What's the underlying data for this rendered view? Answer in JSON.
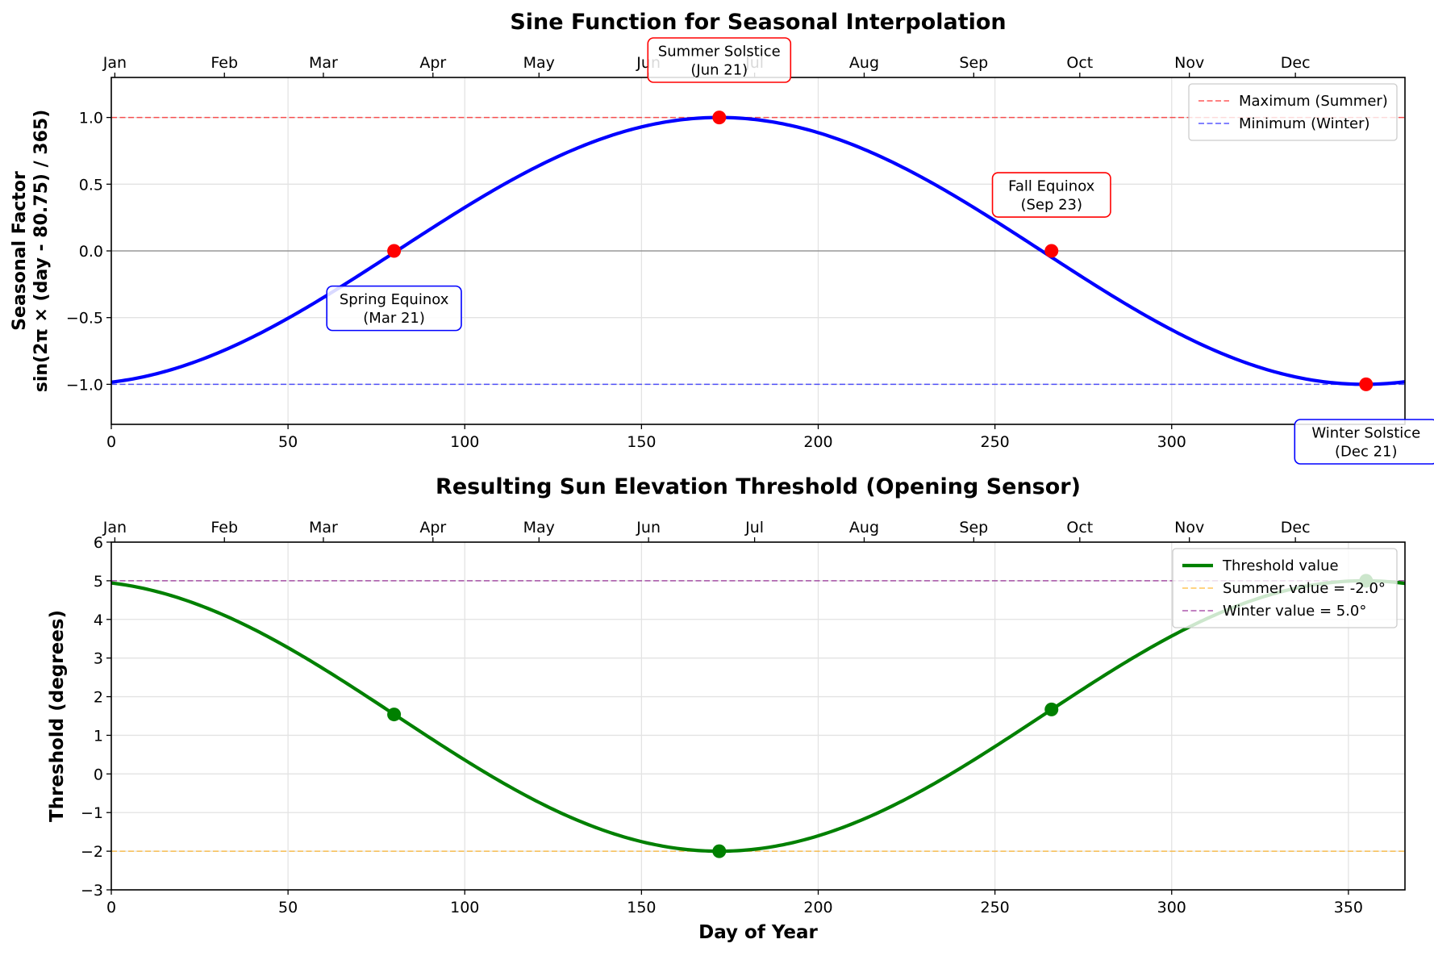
{
  "chart_data": [
    {
      "type": "line",
      "title": "Sine Function for Seasonal Interpolation",
      "xlabel": "",
      "ylabel": [
        "Seasonal Factor",
        "sin(2π × (day - 80.75) / 365)"
      ],
      "xlim": [
        0,
        366
      ],
      "ylim": [
        -1.3,
        1.3
      ],
      "xticks": [
        0,
        50,
        100,
        150,
        200,
        250,
        300
      ],
      "yticks": [
        -1.0,
        -0.5,
        0.0,
        0.5,
        1.0
      ],
      "ytick_labels": [
        "−1.0",
        "−0.5",
        "0.0",
        "0.5",
        "1.0"
      ],
      "grid": true,
      "month_axis": {
        "labels": [
          "Jan",
          "Feb",
          "Mar",
          "Apr",
          "May",
          "Jun",
          "Jul",
          "Aug",
          "Sep",
          "Oct",
          "Nov",
          "Dec"
        ],
        "positions": [
          1,
          32,
          60,
          91,
          121,
          152,
          182,
          213,
          244,
          274,
          305,
          335
        ]
      },
      "curve": {
        "formula": "sin(2*pi*(x-80.75)/365)",
        "x_step": 1,
        "color": "#0000ff"
      },
      "reference_lines": [
        {
          "y": 1.0,
          "name": "Maximum (Summer)",
          "color": "#ff0000"
        },
        {
          "y": -1.0,
          "name": "Minimum (Winter)",
          "color": "#0000ff"
        },
        {
          "y": 0.0,
          "name": "",
          "color": "#808080"
        }
      ],
      "points": [
        {
          "x": 80,
          "y": 0.0
        },
        {
          "x": 172,
          "y": 1.0
        },
        {
          "x": 266,
          "y": 0.0
        },
        {
          "x": 355,
          "y": -1.0
        }
      ],
      "point_color": "#ff0000",
      "annotations": [
        {
          "lines": [
            "Spring Equinox",
            "(Mar 21)"
          ],
          "x": 80,
          "y": -0.43,
          "border": "#0000ff"
        },
        {
          "lines": [
            "Summer Solstice",
            "(Jun 21)"
          ],
          "x": 172,
          "y": 1.43,
          "border": "#ff0000"
        },
        {
          "lines": [
            "Fall Equinox",
            "(Sep 23)"
          ],
          "x": 266,
          "y": 0.42,
          "border": "#ff0000"
        },
        {
          "lines": [
            "Winter Solstice",
            "(Dec 21)"
          ],
          "x": 355,
          "y": -1.43,
          "border": "#0000ff"
        }
      ],
      "legend": {
        "placement": "top-right",
        "entries": [
          "Maximum (Summer)",
          "Minimum (Winter)"
        ]
      }
    },
    {
      "type": "line",
      "title": "Resulting Sun Elevation Threshold (Opening Sensor)",
      "xlabel": "Day of Year",
      "ylabel": [
        "Threshold (degrees)"
      ],
      "xlim": [
        0,
        366
      ],
      "ylim": [
        -3,
        6
      ],
      "xticks": [
        0,
        50,
        100,
        150,
        200,
        250,
        300,
        350
      ],
      "yticks": [
        -3,
        -2,
        -1,
        0,
        1,
        2,
        3,
        4,
        5,
        6
      ],
      "ytick_labels": [
        "−3",
        "−2",
        "−1",
        "0",
        "1",
        "2",
        "3",
        "4",
        "5",
        "6"
      ],
      "grid": true,
      "month_axis": {
        "labels": [
          "Jan",
          "Feb",
          "Mar",
          "Apr",
          "May",
          "Jun",
          "Jul",
          "Aug",
          "Sep",
          "Oct",
          "Nov",
          "Dec"
        ],
        "positions": [
          1,
          32,
          60,
          91,
          121,
          152,
          182,
          213,
          244,
          274,
          305,
          335
        ]
      },
      "curve": {
        "formula": "1.5 - 3.5*sin(2*pi*(x-80.75)/365)",
        "x_step": 1,
        "color": "#008000",
        "name": "Threshold value"
      },
      "reference_lines": [
        {
          "y": -2.0,
          "name": "Summer value = -2.0°",
          "color": "#ffa500"
        },
        {
          "y": 5.0,
          "name": "Winter value = 5.0°",
          "color": "#800080"
        }
      ],
      "points": [
        {
          "x": 80,
          "y": 1.54
        },
        {
          "x": 172,
          "y": -2.0
        },
        {
          "x": 266,
          "y": 1.67
        },
        {
          "x": 355,
          "y": 5.0
        }
      ],
      "point_color": "#008000",
      "annotations": [],
      "legend": {
        "placement": "top-right",
        "entries": [
          "Threshold value",
          "Summer value = -2.0°",
          "Winter value = 5.0°"
        ]
      }
    }
  ]
}
